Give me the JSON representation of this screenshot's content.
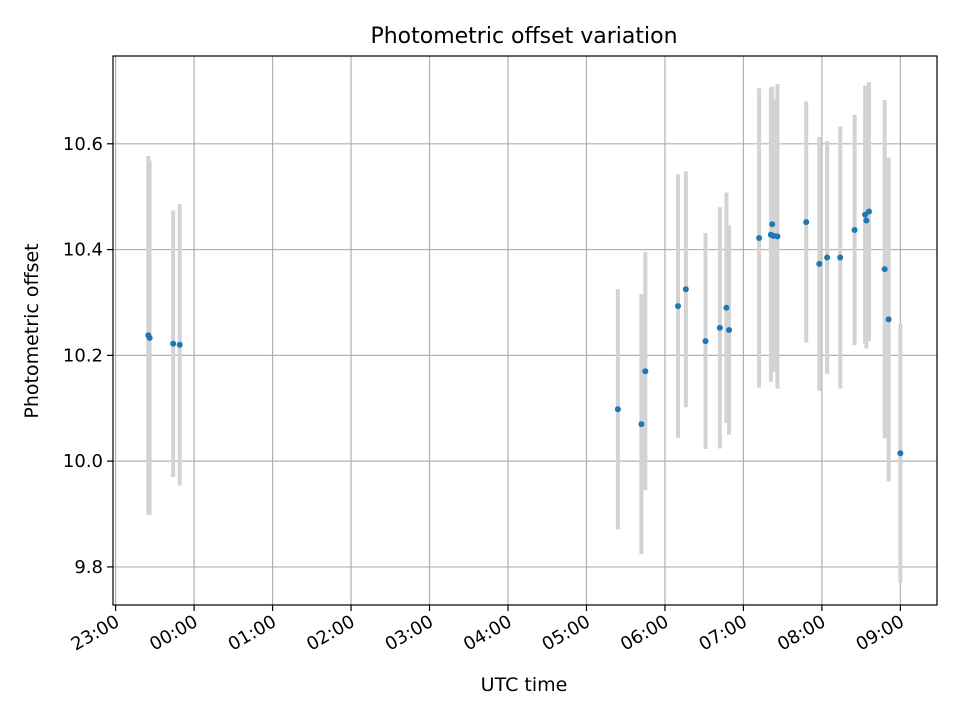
{
  "chart_data": {
    "type": "scatter",
    "title": "Photometric offset variation",
    "xlabel": "UTC time",
    "ylabel": "Photometric offset",
    "grid": true,
    "x_tick_labels": [
      "23:00",
      "00:00",
      "01:00",
      "02:00",
      "03:00",
      "04:00",
      "05:00",
      "06:00",
      "07:00",
      "08:00",
      "09:00"
    ],
    "y_tick_values": [
      9.8,
      10.0,
      10.2,
      10.4,
      10.6
    ],
    "y_tick_labels": [
      "9.8",
      "10.0",
      "10.2",
      "10.4",
      "10.6"
    ],
    "xlim": [
      "22:58",
      "09:28"
    ],
    "ylim": [
      9.728,
      10.766
    ],
    "colors": {
      "point": "#1f77b4",
      "errorbar": "#d3d3d3",
      "grid": "#b0b0b0"
    },
    "points": [
      {
        "t": "23:25",
        "y": 10.238,
        "err": 0.339
      },
      {
        "t": "23:26",
        "y": 10.233,
        "err": 0.335
      },
      {
        "t": "23:44",
        "y": 10.222,
        "err": 0.252
      },
      {
        "t": "23:49",
        "y": 10.22,
        "err": 0.266
      },
      {
        "t": "05:24",
        "y": 10.098,
        "err": 0.227
      },
      {
        "t": "05:42",
        "y": 10.07,
        "err": 0.246
      },
      {
        "t": "05:45",
        "y": 10.17,
        "err": 0.225
      },
      {
        "t": "06:10",
        "y": 10.293,
        "err": 0.249
      },
      {
        "t": "06:16",
        "y": 10.325,
        "err": 0.223
      },
      {
        "t": "06:31",
        "y": 10.227,
        "err": 0.204
      },
      {
        "t": "06:42",
        "y": 10.252,
        "err": 0.228
      },
      {
        "t": "06:47",
        "y": 10.29,
        "err": 0.218
      },
      {
        "t": "06:49",
        "y": 10.248,
        "err": 0.198
      },
      {
        "t": "07:12",
        "y": 10.422,
        "err": 0.283
      },
      {
        "t": "07:21",
        "y": 10.428,
        "err": 0.278
      },
      {
        "t": "07:22",
        "y": 10.448,
        "err": 0.26
      },
      {
        "t": "07:23",
        "y": 10.426,
        "err": 0.258
      },
      {
        "t": "07:26",
        "y": 10.425,
        "err": 0.288
      },
      {
        "t": "07:48",
        "y": 10.452,
        "err": 0.228
      },
      {
        "t": "07:58",
        "y": 10.373,
        "err": 0.24
      },
      {
        "t": "08:04",
        "y": 10.385,
        "err": 0.22
      },
      {
        "t": "08:14",
        "y": 10.385,
        "err": 0.248
      },
      {
        "t": "08:25",
        "y": 10.437,
        "err": 0.218
      },
      {
        "t": "08:33",
        "y": 10.466,
        "err": 0.244
      },
      {
        "t": "08:34",
        "y": 10.455,
        "err": 0.242
      },
      {
        "t": "08:36",
        "y": 10.472,
        "err": 0.245
      },
      {
        "t": "08:48",
        "y": 10.363,
        "err": 0.32
      },
      {
        "t": "08:51",
        "y": 10.268,
        "err": 0.306
      },
      {
        "t": "09:00",
        "y": 10.015,
        "err": 0.245
      }
    ]
  }
}
